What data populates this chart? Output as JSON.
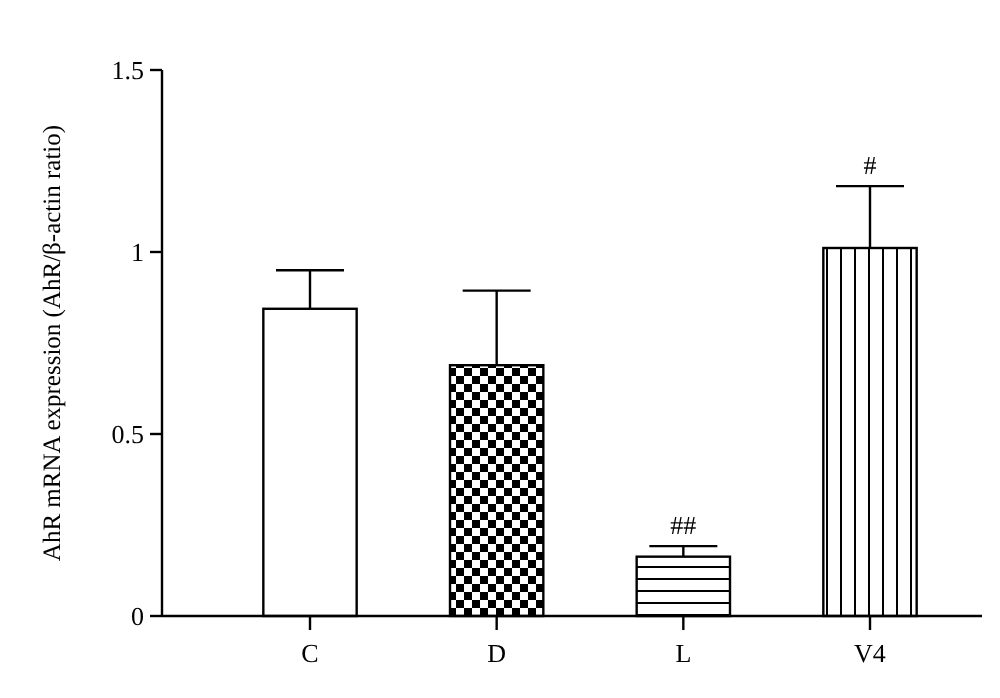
{
  "chart_data": {
    "type": "bar",
    "ylabel": "AhR mRNA expression (AhR/β-actin ratio)",
    "categories": [
      "C",
      "D",
      "L",
      "V4"
    ],
    "values": [
      0.844,
      0.689,
      0.163,
      1.011
    ],
    "errors": [
      0.106,
      0.205,
      0.029,
      0.17
    ],
    "color": "#000000",
    "ylim": [
      0,
      1.5
    ],
    "yticks": [
      0,
      0.5,
      1,
      1.5
    ],
    "annotations": [
      {
        "text": "##",
        "x": "L",
        "y": 0.192
      },
      {
        "text": "#",
        "x": "V4",
        "y": 1.181
      }
    ]
  }
}
